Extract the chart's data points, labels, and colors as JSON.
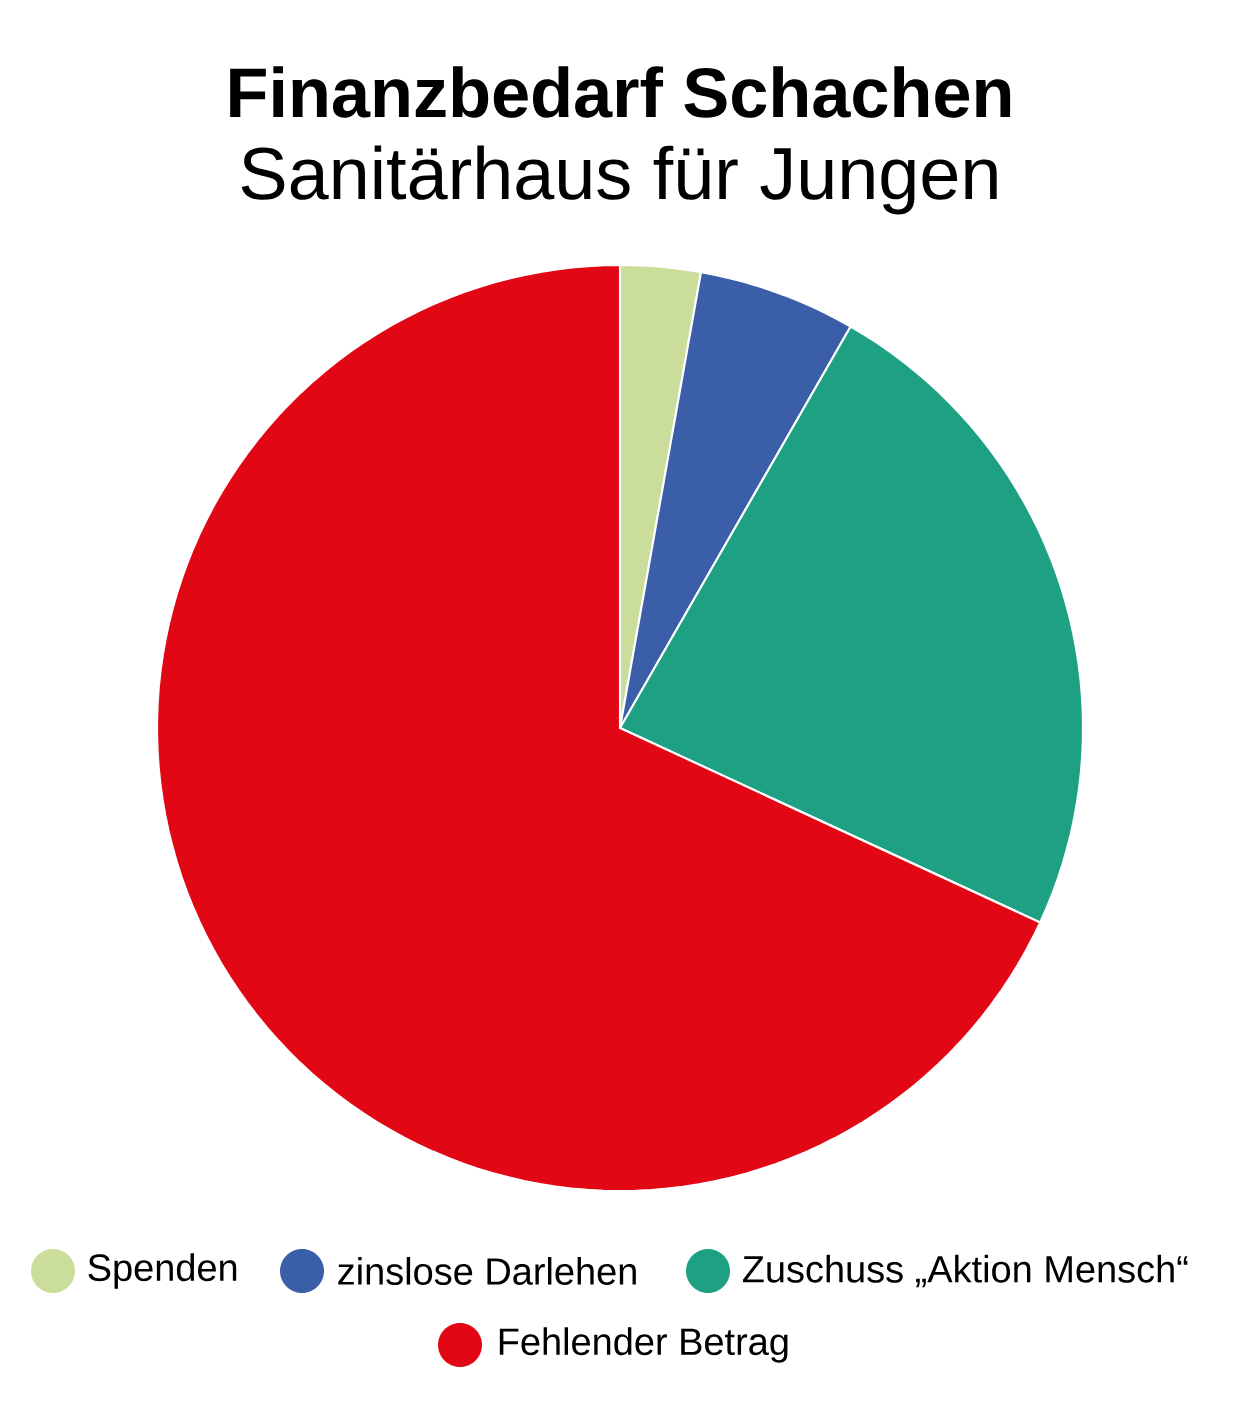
{
  "chart_data": {
    "type": "pie",
    "title": "Finanzbedarf Schachen",
    "subtitle": "Sanitärhaus für Jungen",
    "categories": [
      "Spenden",
      "zinslose Darlehen",
      "Zuschuss „Aktion Mensch“",
      "Fehlender Betrag"
    ],
    "values": [
      2.8,
      5.5,
      23.6,
      68.1
    ],
    "colors": [
      "#cbdd9a",
      "#3a5ea8",
      "#1ea083",
      "#e20714"
    ],
    "legend": "bottom"
  }
}
